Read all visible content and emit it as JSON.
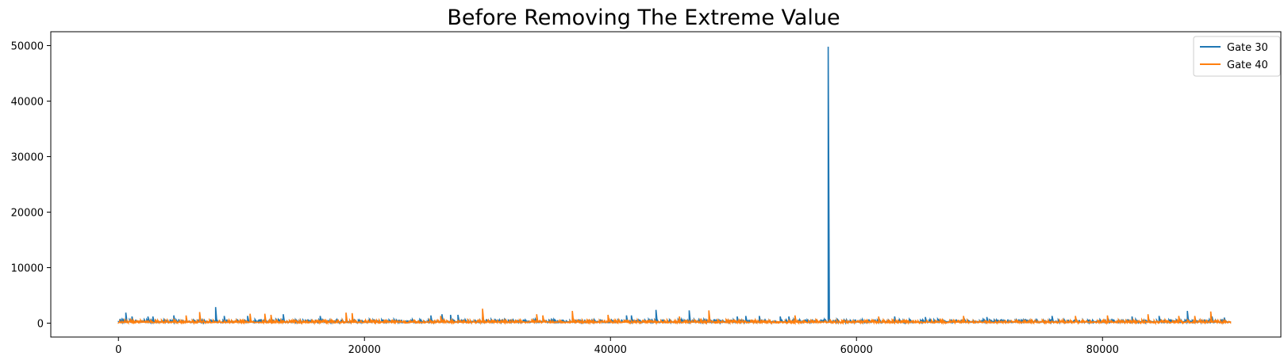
{
  "chart_data": {
    "type": "line",
    "title": "Before Removing The Extreme Value",
    "xlabel": "",
    "ylabel": "",
    "xlim": [
      -5500,
      94500
    ],
    "ylim": [
      -2500,
      52500
    ],
    "xticks": [
      0,
      20000,
      40000,
      60000,
      80000
    ],
    "yticks": [
      0,
      10000,
      20000,
      30000,
      40000,
      50000
    ],
    "grid": false,
    "legend_position": "top-right",
    "series": [
      {
        "name": "Gate 30",
        "color": "#1f77b4",
        "baseline": [
          100,
          700
        ],
        "spikes": [
          [
            600,
            1900
          ],
          [
            1100,
            1200
          ],
          [
            2400,
            1200
          ],
          [
            2800,
            1200
          ],
          [
            4500,
            1400
          ],
          [
            7900,
            2900
          ],
          [
            8600,
            1300
          ],
          [
            10500,
            1300
          ],
          [
            13400,
            1600
          ],
          [
            16400,
            1300
          ],
          [
            25400,
            1400
          ],
          [
            26300,
            1600
          ],
          [
            27000,
            1500
          ],
          [
            27600,
            1500
          ],
          [
            41300,
            1400
          ],
          [
            41700,
            1400
          ],
          [
            43700,
            2400
          ],
          [
            46400,
            2300
          ],
          [
            50300,
            1200
          ],
          [
            51000,
            1300
          ],
          [
            52100,
            1300
          ],
          [
            53800,
            1200
          ],
          [
            54500,
            1200
          ],
          [
            57700,
            49800
          ],
          [
            63100,
            1200
          ],
          [
            65600,
            1100
          ],
          [
            70600,
            1100
          ],
          [
            75900,
            1300
          ],
          [
            82400,
            1200
          ],
          [
            84600,
            1300
          ],
          [
            86900,
            2200
          ],
          [
            88900,
            1200
          ],
          [
            89900,
            1000
          ]
        ]
      },
      {
        "name": "Gate 40",
        "color": "#ff7f0e",
        "baseline": [
          50,
          600
        ],
        "spikes": [
          [
            5500,
            1400
          ],
          [
            6600,
            2000
          ],
          [
            10700,
            1700
          ],
          [
            11900,
            1700
          ],
          [
            12400,
            1500
          ],
          [
            18500,
            1900
          ],
          [
            19000,
            1800
          ],
          [
            26200,
            1300
          ],
          [
            29600,
            2600
          ],
          [
            34000,
            1600
          ],
          [
            34500,
            1400
          ],
          [
            36900,
            2200
          ],
          [
            39800,
            1500
          ],
          [
            45600,
            1200
          ],
          [
            48000,
            2300
          ],
          [
            55000,
            1400
          ],
          [
            61800,
            1200
          ],
          [
            68700,
            1300
          ],
          [
            77800,
            1300
          ],
          [
            80400,
            1400
          ],
          [
            83700,
            1600
          ],
          [
            86200,
            1300
          ],
          [
            87500,
            1300
          ],
          [
            88800,
            2100
          ]
        ]
      }
    ]
  }
}
